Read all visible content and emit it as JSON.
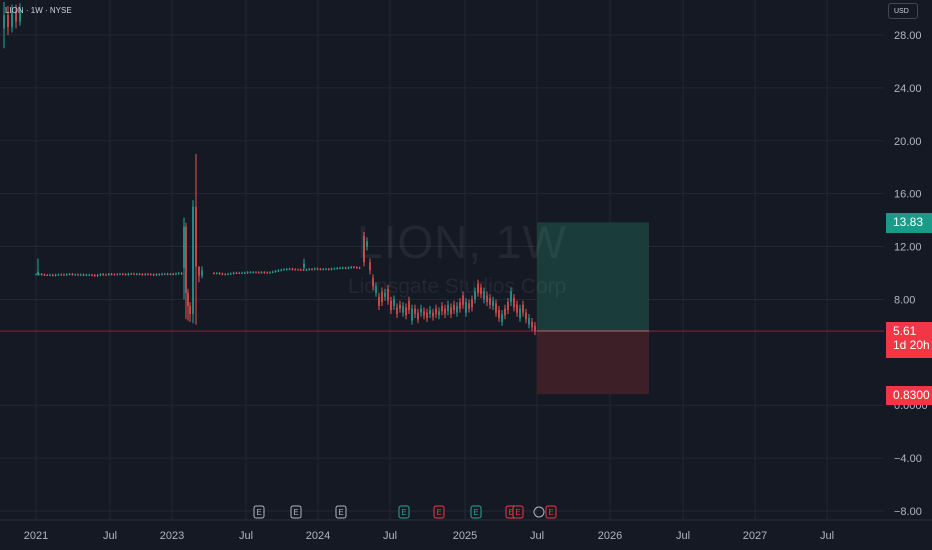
{
  "header": {
    "symbol_line": "LION · 1W · NYSE",
    "currency": "USD"
  },
  "watermark": {
    "ticker": "LION, 1W",
    "company": "Lionsgate Studios Corp"
  },
  "price_labels": {
    "target": {
      "value": "13.83",
      "color": "#1a9b8a"
    },
    "current": {
      "value": "5.61",
      "countdown": "1d 20h",
      "color": "#f23645"
    },
    "stop": {
      "value": "0.8300",
      "color": "#f23645"
    }
  },
  "event_markers": [
    "E",
    "E",
    "E",
    "E",
    "E",
    "E",
    "E",
    "E",
    "E"
  ],
  "chart_data": {
    "type": "candlestick",
    "x_tick_labels": [
      "2021",
      "Jul",
      "2023",
      "Jul",
      "2024",
      "Jul",
      "2025",
      "Jul",
      "2026",
      "Jul",
      "2027",
      "Jul"
    ],
    "y_tick_labels": [
      "28.00",
      "24.00",
      "20.00",
      "16.00",
      "12.00",
      "8.00",
      "0.0000",
      "−4.00",
      "−8.00"
    ],
    "ylim": [
      -8.8,
      30.3
    ],
    "current_price": 5.61,
    "position": {
      "entry": 5.61,
      "target": 13.83,
      "stop": 0.83
    },
    "colors": {
      "up": "#26a69a",
      "down": "#ef5350",
      "profit_zone": "#1a3d3c",
      "loss_zone": "#3d2027"
    }
  }
}
